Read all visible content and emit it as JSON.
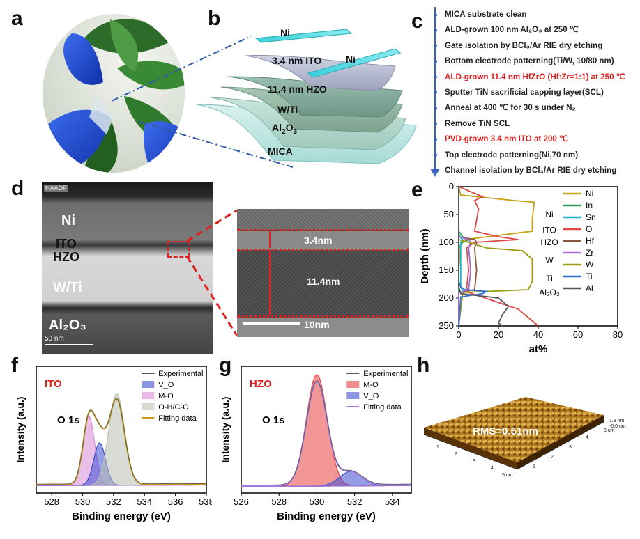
{
  "panels": {
    "a": "a",
    "b": "b",
    "c": "c",
    "d": "d",
    "e": "e",
    "f": "f",
    "g": "g",
    "h": "h"
  },
  "b": {
    "layers": [
      "Ni",
      "3.4 nm ITO",
      "Ni",
      "11.4 nm HZO",
      "W/Ti",
      "Al2O3",
      "MICA"
    ]
  },
  "c": {
    "steps": [
      {
        "text": "MICA substrate clean",
        "highlight": false
      },
      {
        "text": "ALD-grown 100 nm Al₂O₃ at 250 ℃",
        "highlight": false
      },
      {
        "text": "Gate isolation by BCl₃/Ar RIE dry etching",
        "highlight": false
      },
      {
        "text": "Bottom electrode patterning(Ti/W, 10/80 nm)",
        "highlight": false
      },
      {
        "text": "ALD-grown 11.4 nm HfZrO (Hf:Zr=1:1) at 250 ℃",
        "highlight": true
      },
      {
        "text": "Sputter TiN sacrificial capping layer(SCL)",
        "highlight": false
      },
      {
        "text": "Anneal at 400 ℃ for 30 s under N₂",
        "highlight": false
      },
      {
        "text": "Remove TiN SCL",
        "highlight": false
      },
      {
        "text": "PVD-grown 3.4 nm ITO at 200 ℃",
        "highlight": true
      },
      {
        "text": "Top electrode patterning(Ni,70 nm)",
        "highlight": false
      },
      {
        "text": "Channel isolation by BCl₃/Ar RIE dry etching",
        "highlight": false
      }
    ]
  },
  "d": {
    "detector": "HAADF",
    "labels": [
      "Ni",
      "ITO",
      "HZO",
      "W/Ti",
      "Al₂O₃"
    ],
    "scalebar": "50 nm",
    "zoom": {
      "ito_thickness": "3.4nm",
      "hzo_thickness": "11.4nm",
      "scalebar": "10nm"
    }
  },
  "colors": {
    "red": "#e02020",
    "ito": "#c08f1b",
    "ni": "#c6a012",
    "in": "#2e9a55",
    "sn": "#1fb5c9",
    "o": "#e04848",
    "hf": "#8a5a3c",
    "zr": "#a66ad8",
    "w": "#9a9a10",
    "ti": "#2f6fd6",
    "al": "#555555"
  },
  "chart_data": [
    {
      "panel": "e",
      "type": "line",
      "xlabel": "at%",
      "ylabel": "Depth (nm)",
      "xlim": [
        0,
        80
      ],
      "ylim": [
        250,
        0
      ],
      "xticks": [
        0,
        20,
        40,
        60,
        80
      ],
      "yticks": [
        0,
        50,
        100,
        150,
        200,
        250
      ],
      "layer_labels": [
        "Ni",
        "ITO",
        "HZO",
        "W",
        "Ti",
        "Al₂O₃"
      ],
      "series": [
        {
          "name": "Ni",
          "color": "#c6a012",
          "x": [
            0,
            1,
            28,
            38,
            37,
            37,
            3,
            1,
            0,
            0
          ],
          "y": [
            0,
            15,
            25,
            28,
            60,
            80,
            95,
            100,
            150,
            250
          ]
        },
        {
          "name": "In",
          "color": "#2e9a55",
          "x": [
            0,
            0,
            2,
            5,
            2,
            0,
            0
          ],
          "y": [
            0,
            80,
            90,
            95,
            100,
            110,
            250
          ]
        },
        {
          "name": "Sn",
          "color": "#1fb5c9",
          "x": [
            0,
            0,
            1,
            2,
            1,
            1,
            2,
            0
          ],
          "y": [
            0,
            85,
            92,
            95,
            100,
            180,
            188,
            250
          ]
        },
        {
          "name": "O",
          "color": "#e04848",
          "x": [
            0,
            12,
            8,
            10,
            9,
            8,
            20,
            30,
            8,
            4,
            5,
            4,
            5,
            30,
            40
          ],
          "y": [
            0,
            18,
            25,
            40,
            60,
            80,
            90,
            95,
            100,
            110,
            150,
            180,
            190,
            220,
            250
          ]
        },
        {
          "name": "Hf",
          "color": "#8a5a3c",
          "x": [
            0,
            0,
            8,
            9,
            8,
            9,
            8,
            0,
            0
          ],
          "y": [
            0,
            90,
            95,
            100,
            110,
            150,
            185,
            190,
            250
          ]
        },
        {
          "name": "Zr",
          "color": "#a66ad8",
          "x": [
            0,
            0,
            5,
            6,
            5,
            6,
            5,
            0,
            0
          ],
          "y": [
            0,
            90,
            95,
            100,
            110,
            150,
            185,
            190,
            250
          ]
        },
        {
          "name": "W",
          "color": "#9a9a10",
          "x": [
            0,
            0,
            5,
            14,
            32,
            37,
            37,
            35,
            2,
            0
          ],
          "y": [
            0,
            95,
            100,
            110,
            115,
            130,
            170,
            185,
            190,
            250
          ]
        },
        {
          "name": "Ti",
          "color": "#2f6fd6",
          "x": [
            0,
            0,
            1,
            3,
            14,
            12,
            1,
            0
          ],
          "y": [
            0,
            170,
            180,
            185,
            188,
            192,
            198,
            250
          ]
        },
        {
          "name": "Al",
          "color": "#555555",
          "x": [
            0,
            0,
            1,
            20,
            25,
            22,
            20,
            22
          ],
          "y": [
            0,
            180,
            192,
            200,
            215,
            230,
            245,
            250
          ]
        }
      ]
    },
    {
      "panel": "f",
      "type": "area",
      "title": "ITO",
      "annotation": "O 1s",
      "xlabel": "Binding energy (eV)",
      "ylabel": "Intensity (a.u.)",
      "xlim": [
        538,
        527
      ],
      "xticks": [
        528,
        530,
        532,
        534,
        536,
        538
      ],
      "legend": [
        "Experimental",
        "V_O",
        "M-O",
        "O-H/C-O",
        "Fitting data"
      ],
      "peaks": [
        {
          "name": "M-O",
          "center": 530.4,
          "fwhm": 0.9,
          "amplitude": 0.62,
          "color": "#d98ad8"
        },
        {
          "name": "V_O",
          "center": 531.1,
          "fwhm": 0.9,
          "amplitude": 0.38,
          "color": "#3d4fd0"
        },
        {
          "name": "O-H/C-O",
          "center": 532.2,
          "fwhm": 1.2,
          "amplitude": 0.82,
          "color": "#b9bfb0"
        }
      ],
      "background": [
        {
          "x": 527,
          "y": 0.03
        },
        {
          "x": 538,
          "y": 0.035
        }
      ]
    },
    {
      "panel": "g",
      "type": "area",
      "title": "HZO",
      "annotation": "O 1s",
      "xlabel": "Binding energy (eV)",
      "ylabel": "Intensity (a.u.)",
      "xlim": [
        535,
        526
      ],
      "xticks": [
        526,
        528,
        530,
        532,
        534
      ],
      "legend": [
        "Experimental",
        "M-O",
        "V_O",
        "Fitting data"
      ],
      "peaks": [
        {
          "name": "M-O",
          "center": 530.0,
          "fwhm": 1.3,
          "amplitude": 1.0,
          "color": "#e84040"
        },
        {
          "name": "V_O",
          "center": 531.8,
          "fwhm": 1.4,
          "amplitude": 0.13,
          "color": "#3d4fd0"
        }
      ],
      "background": [
        {
          "x": 526,
          "y": 0.02
        },
        {
          "x": 535,
          "y": 0.03
        }
      ]
    }
  ],
  "h": {
    "rms": "RMS=0.51nm",
    "z_labels": [
      "1.8 nm",
      "-0.0 nm"
    ],
    "x_ticks": [
      "1",
      "2",
      "3",
      "4",
      "5 um"
    ],
    "y_ticks": [
      "1",
      "2",
      "3",
      "4",
      "5 um"
    ]
  }
}
